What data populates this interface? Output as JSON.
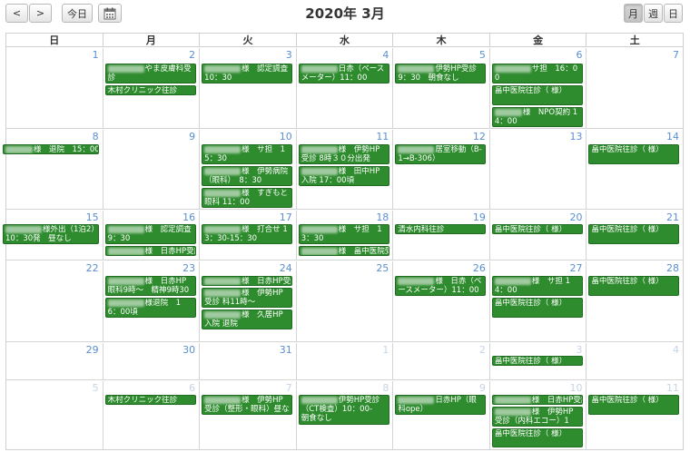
{
  "toolbar": {
    "prev_label": "<",
    "next_label": ">",
    "today_label": "今日",
    "title": "2020年 3月",
    "view_month": "月",
    "view_week": "週",
    "view_day": "日"
  },
  "weekdays": [
    "日",
    "月",
    "火",
    "水",
    "木",
    "金",
    "土"
  ],
  "weeks": [
    [
      "1",
      "2",
      "3",
      "4",
      "5",
      "6",
      "7"
    ],
    [
      "8",
      "9",
      "10",
      "11",
      "12",
      "13",
      "14"
    ],
    [
      "15",
      "16",
      "17",
      "18",
      "19",
      "20",
      "21"
    ],
    [
      "22",
      "23",
      "24",
      "25",
      "26",
      "27",
      "28"
    ],
    [
      "29",
      "30",
      "31",
      "1",
      "2",
      "3",
      "4"
    ],
    [
      "5",
      "6",
      "7",
      "8",
      "9",
      "10",
      "11"
    ]
  ],
  "events": {
    "w0_mon_1": "やま皮膚科受診",
    "w0_mon_2": "木村クリニック往診",
    "w0_tue_1": "様　認定調査 10：30",
    "w0_wed_1": "日赤（ベースメーター）11：00",
    "w0_thu_1": "伊勢HP受診 9：30　朝食なし",
    "w0_fri_1": "サ担　16：00",
    "w0_fri_2": "畠中医院往診（ 様）",
    "w0_fri_3": "様　NPO契約 14：00",
    "w1_sun_1": "様　退院　15：00",
    "w1_tue_1": "様　サ担　15：30",
    "w1_tue_2": "様　伊勢病院（眼科）　8：30",
    "w1_tue_3": "様　すぎもと眼科 11：00",
    "w1_wed_1": "様　伊勢HP受診 8時３０分出発",
    "w1_wed_2": "様　田中HP入院 17：00頃",
    "w1_thu_1": "居室移動（B-1→B-306）",
    "w1_sat_1": "畠中医院往診（ 様）",
    "w2_sun_1": "様外出（1泊2）10：30発　昼なし",
    "w2_mon_1": "様　認定調査 9：30",
    "w2_mon_2": "様　日赤HP受診",
    "w2_tue_1": "様　打合せ 13：30-15：30",
    "w2_wed_1": "様　サ担　13：30",
    "w2_wed_2": "様　畠中医院受診",
    "w2_thu_1": "清水内科往診",
    "w2_fri_1": "畠中医院往診（ 様）",
    "w2_sat_1": "畠中医院往診（ 様）",
    "w3_mon_1": "様　日赤HP眼科9時～　精神9時30分～",
    "w3_mon_2": "様退院　16：00頃",
    "w3_tue_1": "様　日赤HP受診",
    "w3_tue_2": "様　伊勢HP受診 科11時～",
    "w3_tue_3": "様　久居HP入院 退院",
    "w3_thu_1": "様　日赤（ベースメーター）11：00",
    "w3_fri_1": "様　サ担 14：00",
    "w3_fri_2": "畠中医院往診（ 様）",
    "w3_sat_1": "畠中医院往診（ 様）",
    "w4_fri_1": "畠中医院往診（ 様）",
    "w5_mon_1": "木村クリニック往診",
    "w5_tue_1": "様　伊勢HP受診（整形・眼科）昼なし",
    "w5_wed_1": "伊勢HP受診（CT検査）10：00-　朝食なし",
    "w5_thu_1": "日赤HP（眼科ope）",
    "w5_fri_1": "様　日赤HP受診",
    "w5_fri_2": "様　伊勢HP受診（内科エコー）10：20",
    "w5_fri_3": "畠中医院往診（ 様）",
    "w5_sat_1": "畠中医院往診（ 様）"
  },
  "colors": {
    "event_bg": "#2e8b2e",
    "day_number": "#5a8fd0",
    "other_month_day_number": "#c6d4e6"
  }
}
